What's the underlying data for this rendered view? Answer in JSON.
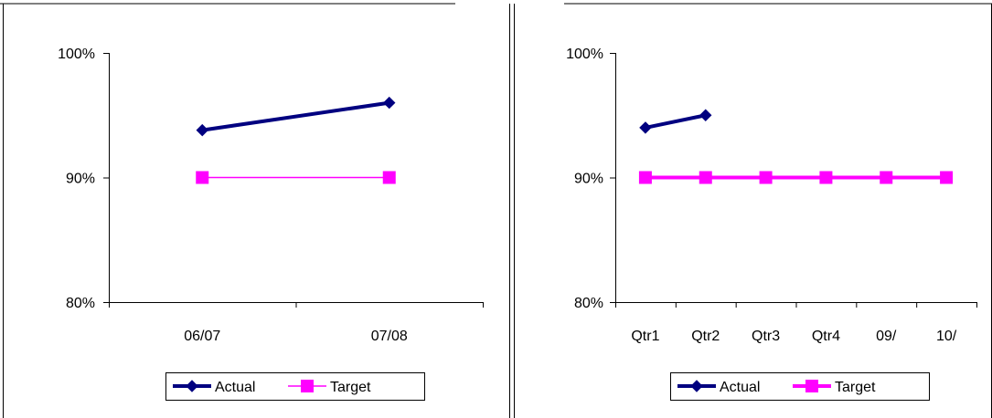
{
  "colors": {
    "actual": "#000080",
    "target": "#FF00FF",
    "axis": "#000000",
    "frame": "#000000"
  },
  "chart_data": [
    {
      "type": "line",
      "categories": [
        "06/07",
        "07/08"
      ],
      "ylim": [
        0.8,
        1.0
      ],
      "yticks": [
        {
          "value": 0.8,
          "label": "80%"
        },
        {
          "value": 0.9,
          "label": "90%"
        },
        {
          "value": 1.0,
          "label": "100%"
        }
      ],
      "grid": false,
      "legend": "bottom",
      "series": [
        {
          "name": "Actual",
          "marker": "diamond",
          "color": "#000080",
          "values": [
            0.938,
            0.96
          ]
        },
        {
          "name": "Target",
          "marker": "square",
          "color": "#FF00FF",
          "values": [
            0.9,
            0.9
          ]
        }
      ]
    },
    {
      "type": "line",
      "categories": [
        "Qtr1",
        "Qtr2",
        "Qtr3",
        "Qtr4",
        "09/",
        "10/"
      ],
      "ylim": [
        0.8,
        1.0
      ],
      "yticks": [
        {
          "value": 0.8,
          "label": "80%"
        },
        {
          "value": 0.9,
          "label": "90%"
        },
        {
          "value": 1.0,
          "label": "100%"
        }
      ],
      "grid": false,
      "legend": "bottom",
      "series": [
        {
          "name": "Actual",
          "marker": "diamond",
          "color": "#000080",
          "values": [
            0.94,
            0.95,
            null,
            null,
            null,
            null
          ]
        },
        {
          "name": "Target",
          "marker": "square",
          "color": "#FF00FF",
          "values": [
            0.9,
            0.9,
            0.9,
            0.9,
            0.9,
            0.9
          ]
        }
      ]
    }
  ]
}
